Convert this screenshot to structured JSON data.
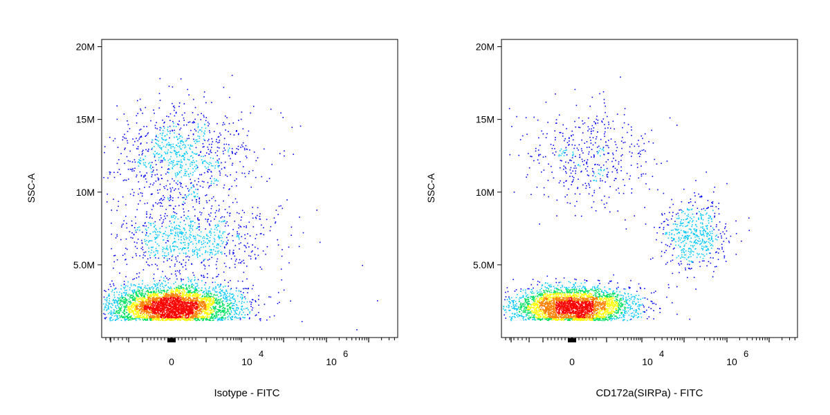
{
  "chart_data": [
    {
      "type": "scatter",
      "subtype": "flow-cytometry-density-dot-plot",
      "xlabel": "Isotype - FITC",
      "ylabel": "SSC-A",
      "x_scale": "biexponential",
      "x_tick_labels": [
        "0",
        "10^4",
        "10^6"
      ],
      "y_tick_labels": [
        "5.0M",
        "10M",
        "15M",
        "20M"
      ],
      "ylim": [
        0,
        20500000
      ],
      "grid": false,
      "legend": "none",
      "color_scale": [
        "#0000ff",
        "#00c8ff",
        "#00e060",
        "#ffff00",
        "#ff8000",
        "#ff0000"
      ],
      "populations": [
        {
          "name": "",
          "x_center": 0,
          "x_spread": 0.18,
          "y_center": 2200000,
          "y_spread": 700000,
          "events": 3800
        },
        {
          "name": "",
          "x_center": 0.1,
          "x_spread": 0.22,
          "y_center": 6800000,
          "y_spread": 1300000,
          "events": 800
        },
        {
          "name": "",
          "x_center": 0.05,
          "x_spread": 0.2,
          "y_center": 12500000,
          "y_spread": 1800000,
          "events": 900
        }
      ]
    },
    {
      "type": "scatter",
      "subtype": "flow-cytometry-density-dot-plot",
      "xlabel": "CD172a(SIRPa) - FITC",
      "ylabel": "SSC-A",
      "x_scale": "biexponential",
      "x_tick_labels": [
        "0",
        "10^4",
        "10^6"
      ],
      "y_tick_labels": [
        "5.0M",
        "10M",
        "15M",
        "20M"
      ],
      "ylim": [
        0,
        20500000
      ],
      "grid": false,
      "legend": "none",
      "color_scale": [
        "#0000ff",
        "#00c8ff",
        "#00e060",
        "#ffff00",
        "#ff8000",
        "#ff0000"
      ],
      "populations": [
        {
          "name": "",
          "x_center": 0,
          "x_spread": 0.17,
          "y_center": 2200000,
          "y_spread": 650000,
          "events": 3300
        },
        {
          "name": "",
          "x_center": 0.1,
          "x_spread": 0.17,
          "y_center": 12500000,
          "y_spread": 1700000,
          "events": 450
        },
        {
          "name": "",
          "x_center": 0.68,
          "x_spread": 0.1,
          "y_center": 7200000,
          "y_spread": 1200000,
          "events": 500
        }
      ]
    }
  ]
}
